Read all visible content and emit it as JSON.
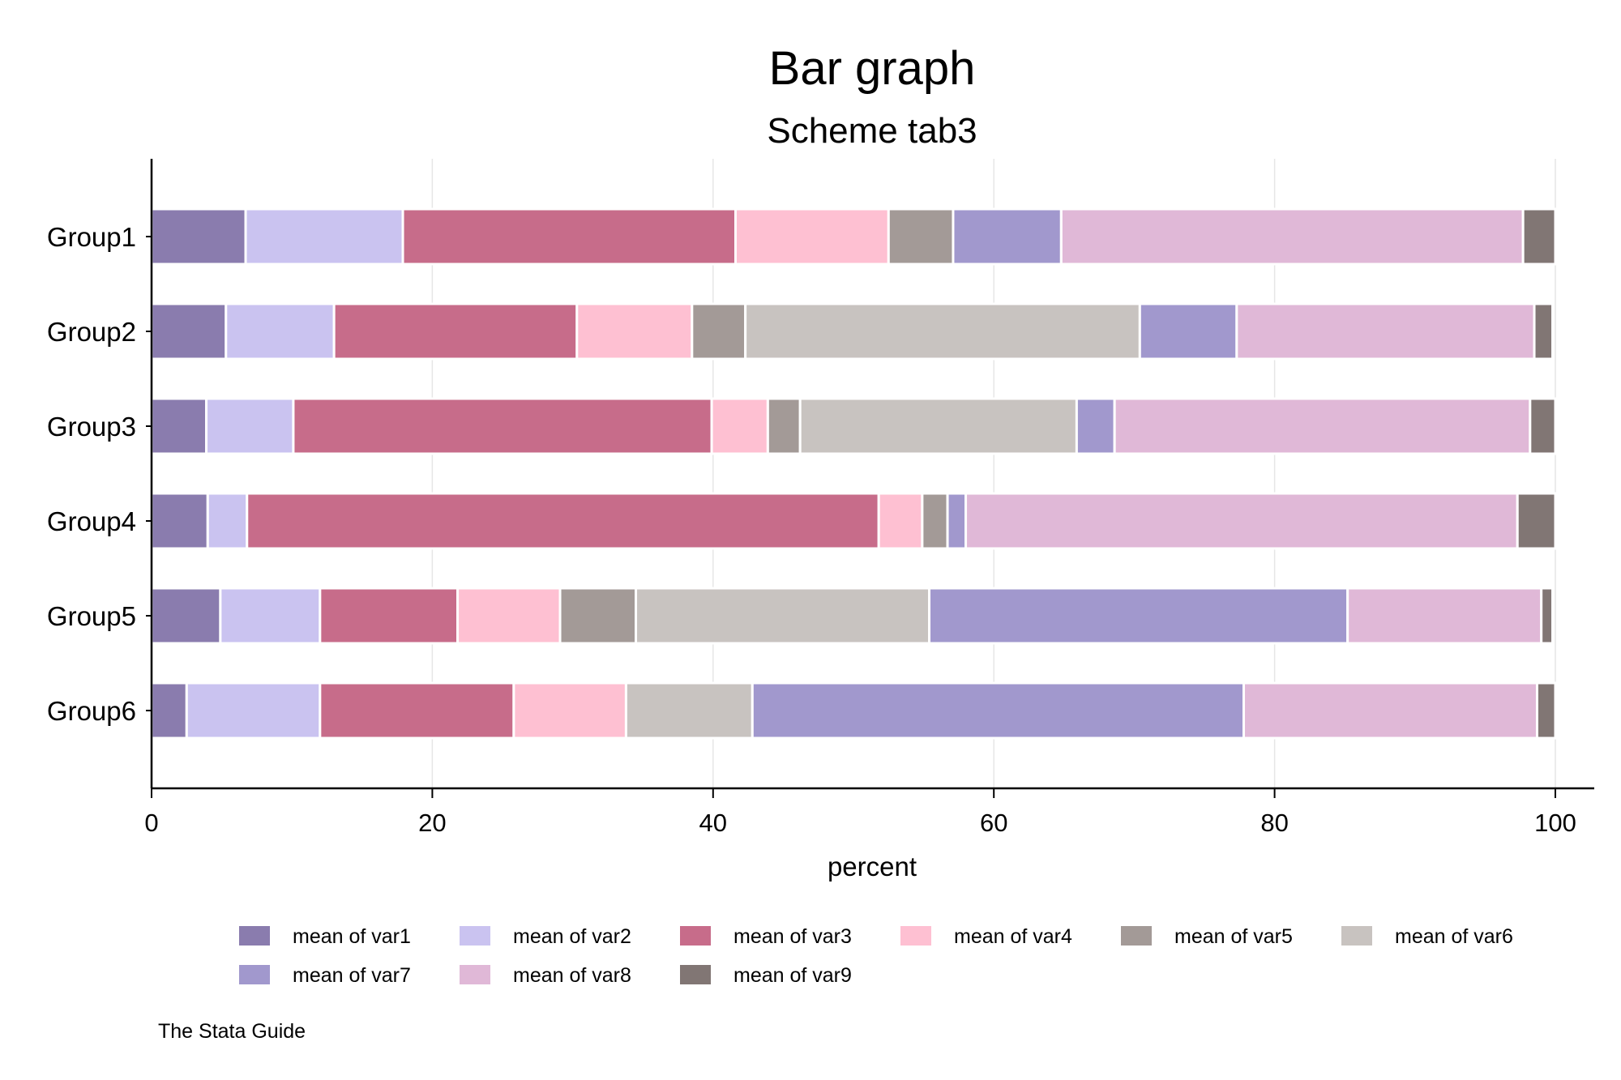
{
  "chart_data": {
    "type": "bar",
    "orientation": "horizontal",
    "stacked": true,
    "title": "Bar graph",
    "subtitle": "Scheme tab3",
    "xlabel": "percent",
    "ylabel": "",
    "xlim": [
      0,
      100
    ],
    "x_ticks": [
      0,
      20,
      40,
      60,
      80,
      100
    ],
    "grid": true,
    "legend_position": "bottom",
    "note": "The Stata Guide",
    "categories": [
      "Group1",
      "Group2",
      "Group3",
      "Group4",
      "Group5",
      "Group6"
    ],
    "series": [
      {
        "name": "mean of var1",
        "color": "#8a7cae",
        "values": [
          6.7,
          5.3,
          3.9,
          4.0,
          4.9,
          2.5
        ]
      },
      {
        "name": "mean of var2",
        "color": "#cac3f0",
        "values": [
          11.2,
          7.7,
          6.2,
          2.8,
          7.1,
          9.5
        ]
      },
      {
        "name": "mean of var3",
        "color": "#c76c8a",
        "values": [
          23.7,
          17.3,
          29.8,
          45.0,
          9.8,
          13.8
        ]
      },
      {
        "name": "mean of var4",
        "color": "#fec0d2",
        "values": [
          10.9,
          8.2,
          4.0,
          3.1,
          7.3,
          8.0
        ]
      },
      {
        "name": "mean of var5",
        "color": "#a39a97",
        "values": [
          4.6,
          3.8,
          2.3,
          1.8,
          5.4,
          0.0
        ]
      },
      {
        "name": "mean of var6",
        "color": "#c8c3c0",
        "values": [
          0.0,
          28.1,
          19.7,
          0.0,
          20.9,
          9.0
        ]
      },
      {
        "name": "mean of var7",
        "color": "#a198cd",
        "values": [
          7.7,
          6.9,
          2.7,
          1.3,
          29.8,
          35.0
        ]
      },
      {
        "name": "mean of var8",
        "color": "#e0b8d7",
        "values": [
          32.9,
          21.2,
          29.6,
          39.3,
          13.8,
          20.9
        ]
      },
      {
        "name": "mean of var9",
        "color": "#817674",
        "values": [
          2.3,
          1.3,
          1.8,
          2.7,
          0.8,
          1.3
        ]
      }
    ]
  }
}
